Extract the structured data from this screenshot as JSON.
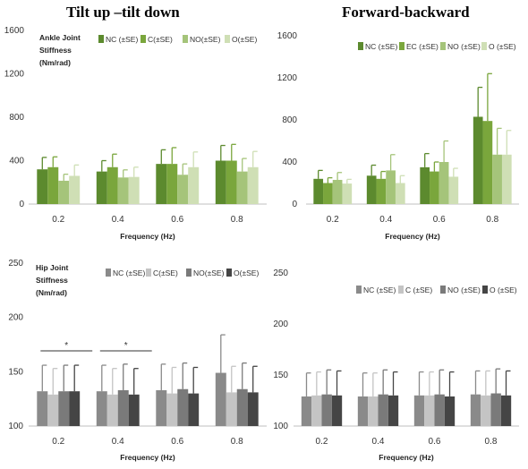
{
  "titles": {
    "left": "Tilt up –tilt down",
    "right": "Forward-backward"
  },
  "colors": {
    "top": [
      "#5c8a2e",
      "#7aa63c",
      "#a5c47a",
      "#cfdfb5"
    ],
    "bottom": [
      "#8a8a8a",
      "#c4c4c4",
      "#7a7a7a",
      "#454545"
    ]
  },
  "chart_data": [
    {
      "type": "bar",
      "panel": "top-left",
      "ylabel_lines": [
        "Ankle Joint",
        "Stiffness",
        "(Nm/rad)"
      ],
      "xlabel": "Frequency (Hz)",
      "categories": [
        "0.2",
        "0.4",
        "0.6",
        "0.8"
      ],
      "ylim": [
        0,
        1600
      ],
      "yticks": [
        0,
        400,
        800,
        1200,
        1600
      ],
      "legend_position": "top",
      "series": [
        {
          "name": "NC (±SE)",
          "values": [
            320,
            300,
            370,
            400
          ],
          "errors": [
            110,
            100,
            130,
            140
          ]
        },
        {
          "name": "C(±SE)",
          "values": [
            340,
            340,
            370,
            400
          ],
          "errors": [
            95,
            120,
            150,
            150
          ]
        },
        {
          "name": "NO(±SE)",
          "values": [
            215,
            245,
            270,
            300
          ],
          "errors": [
            60,
            70,
            100,
            120
          ]
        },
        {
          "name": "O(±SE)",
          "values": [
            260,
            250,
            340,
            340
          ],
          "errors": [
            100,
            90,
            140,
            145
          ]
        }
      ]
    },
    {
      "type": "bar",
      "panel": "top-right",
      "xlabel": "Frequency (Hz)",
      "categories": [
        "0.2",
        "0.4",
        "0.6",
        "0.8"
      ],
      "ylim": [
        0,
        1600
      ],
      "yticks": [
        0,
        400,
        800,
        1200,
        1600
      ],
      "legend_position": "top",
      "series": [
        {
          "name": "NC (±SE)",
          "values": [
            240,
            270,
            350,
            830
          ],
          "errors": [
            80,
            100,
            130,
            280
          ]
        },
        {
          "name": "EC (±SE)",
          "values": [
            200,
            240,
            310,
            790
          ],
          "errors": [
            50,
            70,
            90,
            450
          ]
        },
        {
          "name": "NO (±SE)",
          "values": [
            230,
            320,
            400,
            470
          ],
          "errors": [
            70,
            150,
            200,
            250
          ]
        },
        {
          "name": "O (±SE)",
          "values": [
            195,
            200,
            260,
            470
          ],
          "errors": [
            40,
            70,
            80,
            230
          ]
        }
      ]
    },
    {
      "type": "bar",
      "panel": "bottom-left",
      "ylabel_lines": [
        "Hip Joint",
        "Stiffness",
        "(Nm/rad)"
      ],
      "xlabel": "Frequency (Hz)",
      "categories": [
        "0.2",
        "0.4",
        "0.6",
        "0.8"
      ],
      "ylim": [
        100,
        250
      ],
      "yticks": [
        100,
        150,
        200,
        250
      ],
      "legend_position": "top",
      "annotations": [
        "*",
        "*"
      ],
      "series": [
        {
          "name": "NC (±SE)",
          "values": [
            132,
            132,
            133,
            149
          ],
          "errors": [
            24,
            24,
            24,
            35
          ]
        },
        {
          "name": "C(±SE)",
          "values": [
            129,
            129,
            130,
            131
          ],
          "errors": [
            24,
            24,
            24,
            24
          ]
        },
        {
          "name": "NO(±SE)",
          "values": [
            132,
            133,
            134,
            134
          ],
          "errors": [
            24,
            24,
            24,
            24
          ]
        },
        {
          "name": "O(±SE)",
          "values": [
            132,
            129,
            130,
            131
          ],
          "errors": [
            24,
            24,
            24,
            24
          ]
        }
      ]
    },
    {
      "type": "bar",
      "panel": "bottom-right",
      "xlabel": "Frequency (Hz)",
      "categories": [
        "0.2",
        "0.4",
        "0.6",
        "0.8"
      ],
      "ylim": [
        100,
        250
      ],
      "yticks": [
        100,
        150,
        200,
        250
      ],
      "legend_position": "top",
      "series": [
        {
          "name": "NC (±SE)",
          "values": [
            129,
            129,
            130,
            131
          ],
          "errors": [
            23,
            23,
            23,
            23
          ]
        },
        {
          "name": "C (±SE)",
          "values": [
            130,
            129,
            130,
            130
          ],
          "errors": [
            23,
            23,
            23,
            24
          ]
        },
        {
          "name": "NO (±SE)",
          "values": [
            131,
            131,
            131,
            132
          ],
          "errors": [
            24,
            24,
            24,
            24
          ]
        },
        {
          "name": "O (±SE)",
          "values": [
            130,
            130,
            129,
            130
          ],
          "errors": [
            24,
            23,
            24,
            24
          ]
        }
      ]
    }
  ]
}
